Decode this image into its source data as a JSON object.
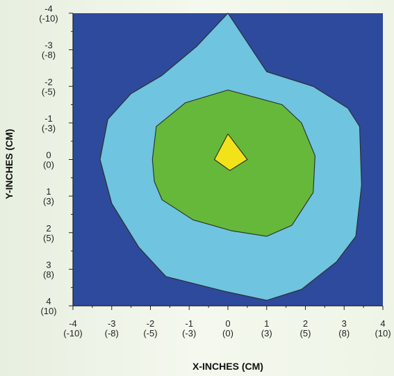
{
  "chart_data": {
    "type": "contour",
    "xlabel": "X-INCHES (CM)",
    "ylabel": "Y-INCHES (CM)",
    "xlim": [
      -4,
      4
    ],
    "ylim": [
      -4,
      4
    ],
    "y_axis_direction": "down",
    "grid": false,
    "x_ticks": [
      {
        "value": -4,
        "label": "-4",
        "sublabel": "(-10)"
      },
      {
        "value": -3,
        "label": "-3",
        "sublabel": "(-8)"
      },
      {
        "value": -2,
        "label": "-2",
        "sublabel": "(-5)"
      },
      {
        "value": -1,
        "label": "-1",
        "sublabel": "(-3)"
      },
      {
        "value": 0,
        "label": "0",
        "sublabel": "(0)"
      },
      {
        "value": 1,
        "label": "1",
        "sublabel": "(3)"
      },
      {
        "value": 2,
        "label": "2",
        "sublabel": "(5)"
      },
      {
        "value": 3,
        "label": "3",
        "sublabel": "(8)"
      },
      {
        "value": 4,
        "label": "4",
        "sublabel": "(10)"
      }
    ],
    "y_ticks": [
      {
        "value": -4,
        "label": "-4",
        "sublabel": "(-10)"
      },
      {
        "value": -3,
        "label": "-3",
        "sublabel": "(-8)"
      },
      {
        "value": -2,
        "label": "-2",
        "sublabel": "(-5)"
      },
      {
        "value": -1,
        "label": "-1",
        "sublabel": "(-3)"
      },
      {
        "value": 0,
        "label": "0",
        "sublabel": "(0)"
      },
      {
        "value": 1,
        "label": "1",
        "sublabel": "(3)"
      },
      {
        "value": 2,
        "label": "2",
        "sublabel": "(5)"
      },
      {
        "value": 3,
        "label": "3",
        "sublabel": "(8)"
      },
      {
        "value": 4,
        "label": "4",
        "sublabel": "(10)"
      }
    ],
    "background_color": "#2e4a9c",
    "regions": [
      {
        "level": 1,
        "color": "#6fc4df",
        "polygon": [
          [
            0,
            -4
          ],
          [
            1,
            -2.4
          ],
          [
            2.2,
            -2
          ],
          [
            3.1,
            -1.4
          ],
          [
            3.4,
            -0.9
          ],
          [
            3.45,
            0.7
          ],
          [
            3.3,
            2.1
          ],
          [
            2.8,
            2.8
          ],
          [
            1.9,
            3.55
          ],
          [
            1,
            3.85
          ],
          [
            -0.1,
            3.6
          ],
          [
            -1.6,
            3.2
          ],
          [
            -2.3,
            2.4
          ],
          [
            -3,
            1.2
          ],
          [
            -3.3,
            0
          ],
          [
            -3.1,
            -1.1
          ],
          [
            -2.5,
            -1.8
          ],
          [
            -1.7,
            -2.3
          ],
          [
            -0.8,
            -3.1
          ]
        ]
      },
      {
        "level": 2,
        "color": "#66b83a",
        "polygon": [
          [
            0,
            -1.9
          ],
          [
            1.4,
            -1.5
          ],
          [
            1.9,
            -1
          ],
          [
            2.25,
            -0.1
          ],
          [
            2.2,
            0.9
          ],
          [
            1.65,
            1.8
          ],
          [
            1,
            2.1
          ],
          [
            0.1,
            1.95
          ],
          [
            -0.9,
            1.65
          ],
          [
            -1.7,
            1.1
          ],
          [
            -1.9,
            0.6
          ],
          [
            -1.95,
            0
          ],
          [
            -1.85,
            -0.9
          ],
          [
            -1.1,
            -1.55
          ]
        ]
      },
      {
        "level": 3,
        "color": "#f2e21a",
        "polygon": [
          [
            0,
            -0.7
          ],
          [
            0.5,
            0
          ],
          [
            0.05,
            0.3
          ],
          [
            -0.35,
            0
          ]
        ]
      }
    ]
  }
}
